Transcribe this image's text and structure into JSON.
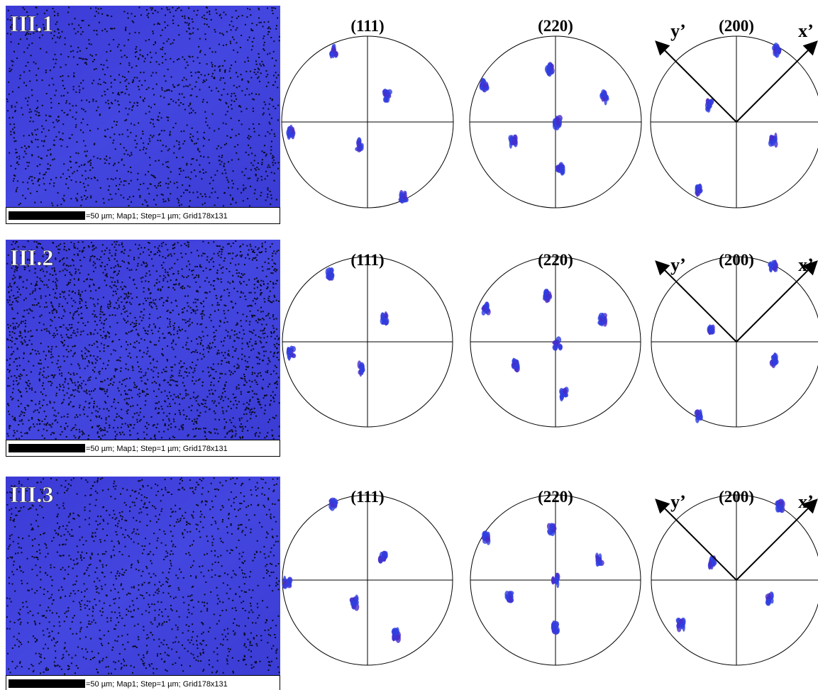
{
  "panels": [
    {
      "label": "III.1",
      "caption": "=50 µm; Map1; Step=1 µm; Grid178x131",
      "pole_figures": [
        "(111)",
        "(220)",
        "(200)"
      ],
      "axis_labels": [
        "y’",
        "x’"
      ]
    },
    {
      "label": "III.2",
      "caption": "=50 µm; Map1; Step=1 µm; Grid178x131",
      "pole_figures": [
        "(111)",
        "(220)",
        "(200)"
      ],
      "axis_labels": [
        "y’",
        "x’"
      ]
    },
    {
      "label": "III.3",
      "caption": "=50 µm; Map1; Step=1 µm; Grid178x131",
      "pole_figures": [
        "(111)",
        "(220)",
        "(200)"
      ],
      "axis_labels": [
        "y’",
        "x’"
      ]
    }
  ]
}
